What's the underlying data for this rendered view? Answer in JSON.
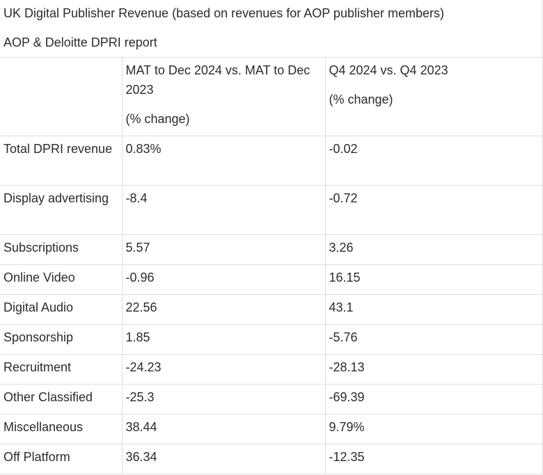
{
  "title": "UK Digital Publisher Revenue (based on revenues for AOP publisher members)",
  "subtitle": "AOP & Deloitte DPRI report",
  "table": {
    "header": {
      "col2_line1": "MAT to Dec 2024 vs. MAT to Dec 2023",
      "col2_line2": "(% change)",
      "col3_line1": "Q4 2024 vs. Q4 2023",
      "col3_line2": "(% change)"
    },
    "rows": [
      {
        "label": "Total DPRI revenue",
        "mat": "0.83%",
        "q4": "-0.02"
      },
      {
        "label": "Display advertising",
        "mat": "-8.4",
        "q4": "-0.72"
      },
      {
        "label": "Subscriptions",
        "mat": "5.57",
        "q4": "3.26"
      },
      {
        "label": "Online Video",
        "mat": "-0.96",
        "q4": "16.15"
      },
      {
        "label": "Digital Audio",
        "mat": "22.56",
        "q4": "43.1"
      },
      {
        "label": "Sponsorship",
        "mat": "1.85",
        "q4": "-5.76"
      },
      {
        "label": "Recruitment",
        "mat": "-24.23",
        "q4": "-28.13"
      },
      {
        "label": "Other Classified",
        "mat": "-25.3",
        "q4": "-69.39"
      },
      {
        "label": "Miscellaneous",
        "mat": "38.44",
        "q4": "9.79%"
      },
      {
        "label": "Off Platform",
        "mat": "36.34",
        "q4": "-12.35"
      }
    ]
  }
}
